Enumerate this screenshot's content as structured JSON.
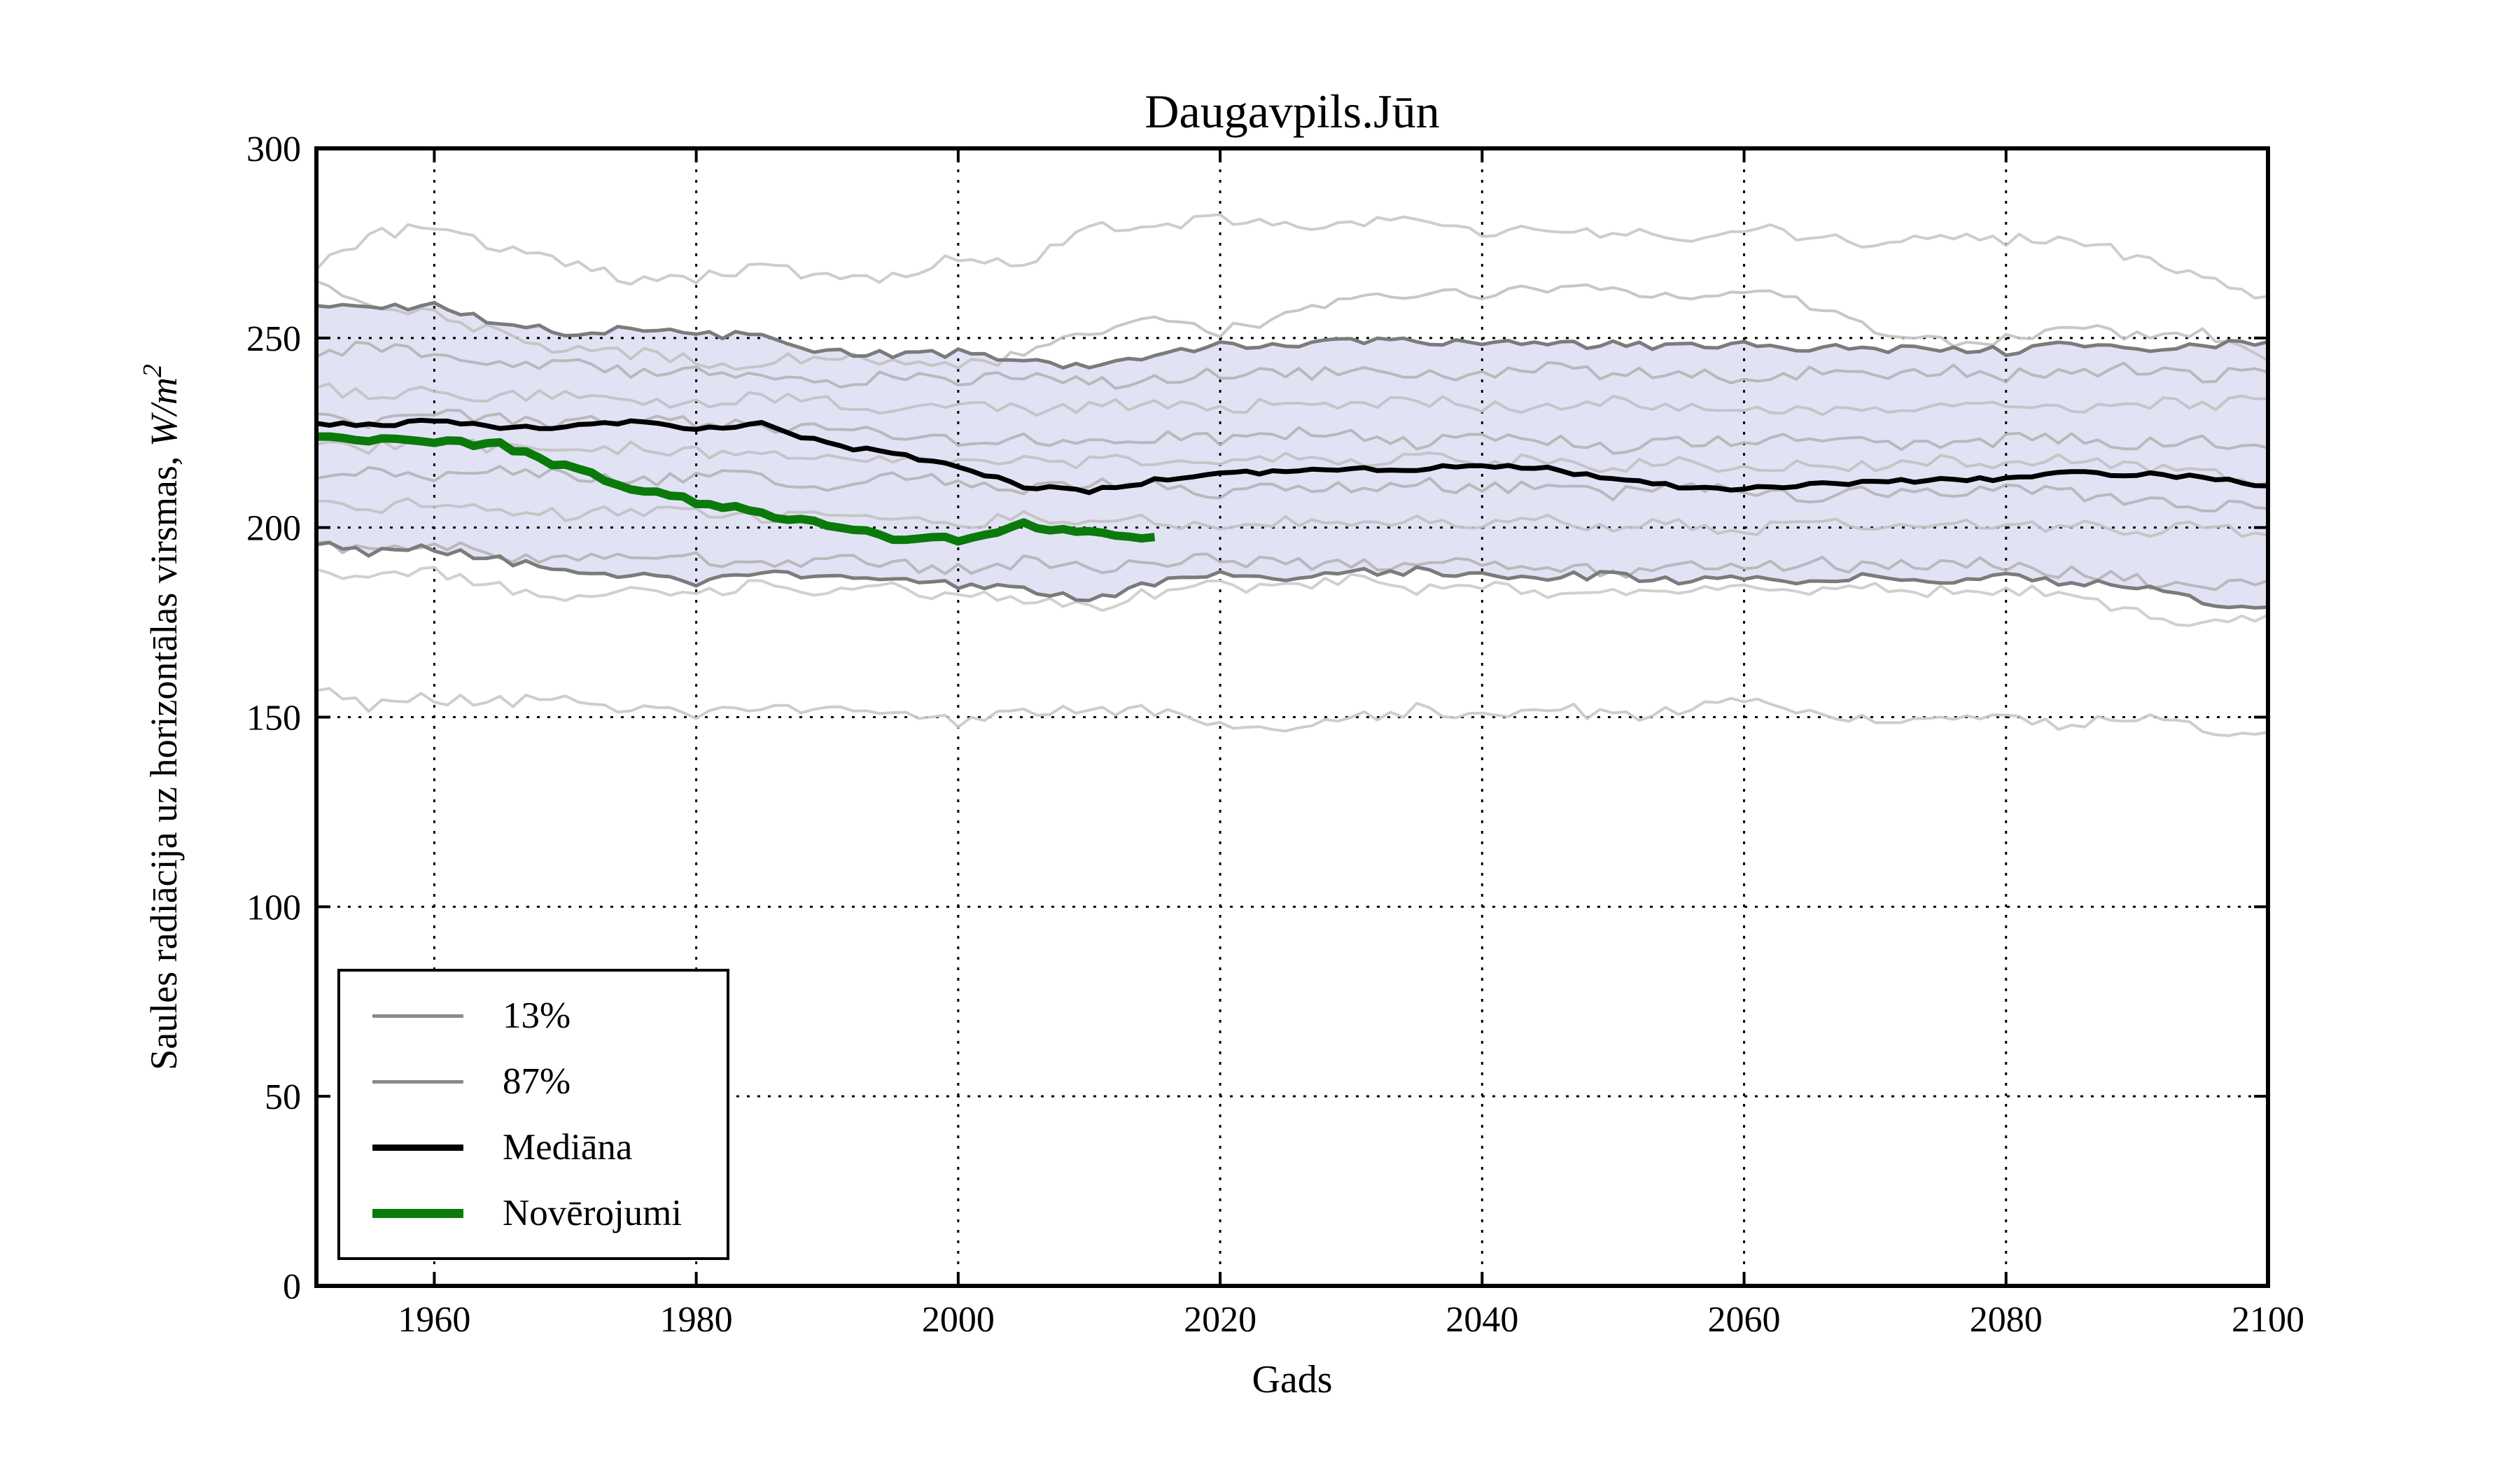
{
  "chart_data": {
    "type": "line",
    "title": "Daugavpils.Jūn",
    "xlabel": "Gads",
    "ylabel": "Saules radiācija uz horizontālas virsmas, W/m²",
    "ylabel_parts": {
      "prefix": "Saules radiācija uz horizontālas virsmas, ",
      "math": "W/m",
      "sup": "2"
    },
    "xlim": [
      1951,
      2100
    ],
    "ylim": [
      0,
      300
    ],
    "x_ticks": [
      1960,
      1980,
      2000,
      2020,
      2040,
      2060,
      2080,
      2100
    ],
    "y_ticks": [
      0,
      50,
      100,
      150,
      200,
      250,
      300
    ],
    "grid": "dotted",
    "background": "#ffffff",
    "band": {
      "fill": "#e2e2f5",
      "edge_color": "#7b7b7b",
      "lower_label": "13%",
      "upper_label": "87%"
    },
    "legend": {
      "position": "lower-left",
      "items": [
        {
          "label": "13%",
          "color": "#8a8a8a",
          "lw": 5
        },
        {
          "label": "87%",
          "color": "#8a8a8a",
          "lw": 5
        },
        {
          "label": "Mediāna",
          "color": "#000000",
          "lw": 9
        },
        {
          "label": "Novērojumi",
          "color": "#0a7a0a",
          "lw": 13
        }
      ]
    },
    "model_years": [
      1951,
      1955,
      1960,
      1965,
      1970,
      1975,
      1980,
      1985,
      1990,
      1995,
      2000,
      2005,
      2010,
      2015,
      2020,
      2025,
      2030,
      2035,
      2040,
      2045,
      2050,
      2055,
      2060,
      2065,
      2070,
      2075,
      2080,
      2085,
      2090,
      2095,
      2100
    ],
    "series": {
      "median": {
        "name": "Mediāna",
        "color": "#000000",
        "lw": 7,
        "values": [
          227.5,
          227,
          228,
          226.5,
          226.5,
          228,
          226,
          227.5,
          222,
          219.5,
          216,
          211,
          209.5,
          212.5,
          214.5,
          214.5,
          215.5,
          215.5,
          216.5,
          215.5,
          212.5,
          211,
          210,
          211.5,
          212,
          212.5,
          213,
          214.5,
          214,
          213.5,
          211
        ]
      },
      "p87": {
        "name": "87%",
        "color": "#7b7b7b",
        "lw": 5,
        "values": [
          258.5,
          257.5,
          258.5,
          254,
          251.5,
          252.5,
          250.5,
          251,
          246,
          245.5,
          246,
          244,
          242,
          244.5,
          248.5,
          248,
          249.5,
          249,
          249,
          248,
          248.5,
          247.5,
          248.5,
          247.5,
          247,
          247.5,
          246.5,
          248.5,
          247.5,
          248,
          249
        ]
      },
      "p13": {
        "name": "13%",
        "color": "#7b7b7b",
        "lw": 5,
        "values": [
          195.5,
          193.5,
          194.5,
          191.5,
          188.5,
          187.5,
          185.5,
          188,
          187.5,
          187,
          185,
          183.5,
          181.5,
          185,
          188,
          186.5,
          188.5,
          188.5,
          188,
          187,
          187.5,
          186,
          187,
          186,
          187.5,
          186,
          187.5,
          185.5,
          184.5,
          180.5,
          179
        ]
      },
      "observations": {
        "name": "Novērojumi",
        "color": "#0a7a0a",
        "lw": 12,
        "years": [
          1951,
          1955,
          1960,
          1965,
          1970,
          1975,
          1980,
          1985,
          1990,
          1995,
          2000,
          2005,
          2010,
          2015
        ],
        "values": [
          224,
          223.5,
          222.5,
          222,
          216,
          210.5,
          207,
          203.5,
          201,
          197.5,
          197,
          201,
          198.5,
          197.5
        ]
      },
      "ensemble": [
        {
          "color": "#c9c9c9",
          "values": [
            268,
            277,
            280,
            274,
            270,
            265,
            266,
            269,
            266,
            266,
            271,
            270,
            279,
            280,
            281,
            279,
            280,
            281,
            278,
            279,
            278,
            276,
            279,
            277,
            275,
            277,
            276,
            277,
            271,
            266,
            261
          ]
        },
        {
          "color": "#c2c2c2",
          "values": [
            265,
            259,
            256,
            251,
            247,
            246,
            244,
            243,
            246,
            244,
            242,
            246,
            252,
            255,
            252,
            256,
            260,
            262,
            261,
            263,
            262,
            261,
            263,
            259,
            252,
            249,
            250,
            252,
            251,
            252,
            244
          ]
        },
        {
          "color": "#b5b5b5",
          "values": [
            245,
            248,
            246,
            243,
            244,
            241,
            242,
            240,
            238,
            240,
            239,
            240,
            238,
            239,
            241,
            240,
            242,
            240,
            241,
            242,
            240,
            241,
            239,
            241,
            240,
            242,
            240,
            241,
            242,
            240,
            241
          ]
        },
        {
          "color": "#c2c2c2",
          "values": [
            237,
            235,
            236,
            234,
            236,
            234,
            233,
            235,
            233,
            231,
            233,
            231,
            232,
            233,
            231,
            233,
            232,
            234,
            232,
            231,
            233,
            231,
            232,
            230,
            232,
            231,
            233,
            231,
            233,
            232,
            234
          ]
        },
        {
          "color": "#b5b5b5",
          "values": [
            230,
            228,
            230,
            229,
            227,
            229,
            228,
            226,
            227,
            225,
            223,
            224,
            222,
            224,
            223,
            225,
            224,
            222,
            224,
            223,
            221,
            223,
            222,
            224,
            223,
            221,
            223,
            224,
            222,
            223,
            221
          ]
        },
        {
          "color": "#c2c2c2",
          "values": [
            222,
            221,
            223,
            221,
            219,
            221,
            220,
            218,
            220,
            218,
            217,
            219,
            217,
            218,
            216,
            218,
            217,
            219,
            217,
            218,
            216,
            217,
            215,
            217,
            216,
            218,
            216,
            218,
            216,
            214,
            212
          ]
        },
        {
          "color": "#b5b5b5",
          "values": [
            213,
            215,
            214,
            216,
            214,
            212,
            214,
            213,
            211,
            213,
            212,
            210,
            212,
            211,
            209,
            211,
            210,
            212,
            210,
            211,
            209,
            211,
            210,
            208,
            210,
            209,
            211,
            209,
            207,
            206,
            205
          ]
        },
        {
          "color": "#c2c2c2",
          "values": [
            207,
            205,
            207,
            205,
            203,
            205,
            204,
            202,
            204,
            202,
            201,
            203,
            201,
            202,
            200,
            202,
            201,
            203,
            201,
            202,
            200,
            201,
            199,
            201,
            200,
            202,
            200,
            201,
            199,
            200,
            198
          ]
        },
        {
          "color": "#b5b5b5",
          "values": [
            196,
            194,
            196,
            193,
            191,
            193,
            192,
            190,
            192,
            190,
            189,
            191,
            189,
            190,
            192,
            190,
            191,
            189,
            191,
            190,
            188,
            190,
            189,
            191,
            189,
            191,
            190,
            188,
            186,
            184,
            186
          ]
        },
        {
          "color": "#cccccc",
          "values": [
            189,
            186,
            188,
            184,
            182,
            184,
            183,
            185,
            183,
            184,
            182,
            181,
            179,
            183,
            185,
            184,
            186,
            184,
            185,
            183,
            184,
            182,
            184,
            183,
            185,
            183,
            184,
            182,
            178,
            174,
            177
          ]
        },
        {
          "color": "#c9c9c9",
          "values": [
            157,
            153,
            155,
            154,
            155,
            152,
            151,
            152,
            153,
            152,
            149,
            151,
            153,
            151,
            148,
            147,
            150,
            152,
            151,
            153,
            150,
            152,
            155,
            152,
            149,
            151,
            150,
            148,
            150,
            147,
            146
          ]
        }
      ]
    }
  }
}
